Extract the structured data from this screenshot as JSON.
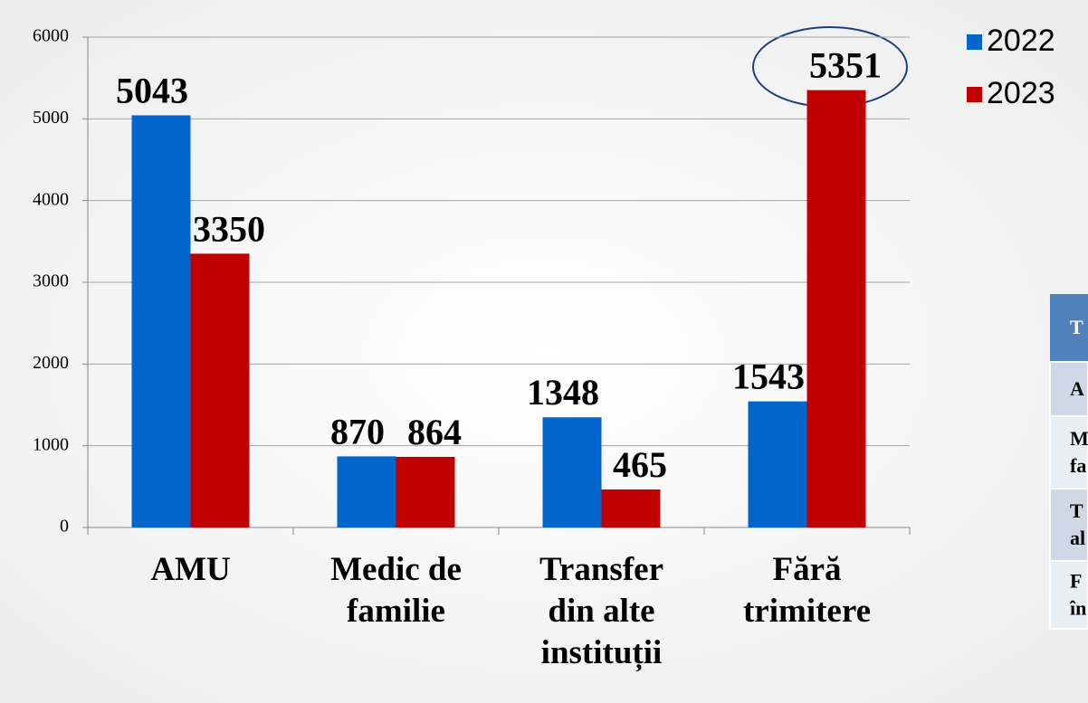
{
  "chart_data": {
    "type": "bar",
    "categories": [
      [
        "AMU"
      ],
      [
        "Medic de",
        "familie"
      ],
      [
        "Transfer",
        "din alte",
        "instituții"
      ],
      [
        "Fără",
        "trimitere"
      ]
    ],
    "series": [
      {
        "name": "2022",
        "color": "#0066cc",
        "values": [
          5043,
          870,
          1348,
          1543
        ]
      },
      {
        "name": "2023",
        "color": "#c00000",
        "values": [
          3350,
          864,
          465,
          5351
        ]
      }
    ],
    "ylim": [
      0,
      6000
    ],
    "yticks": [
      0,
      1000,
      2000,
      3000,
      4000,
      5000,
      6000
    ],
    "grid": true,
    "legend": "top-right"
  },
  "table": {
    "header": "T",
    "rows": [
      [
        "A"
      ],
      [
        "M",
        "fa"
      ],
      [
        "T",
        "al"
      ],
      [
        "F",
        "în"
      ]
    ]
  }
}
